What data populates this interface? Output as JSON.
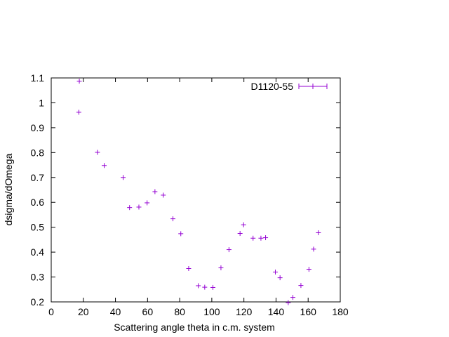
{
  "chart_data": {
    "type": "scatter",
    "title": "",
    "xlabel": "Scattering angle theta in c.m. system",
    "ylabel": "dsigma/dOmega",
    "xlim": [
      0,
      180
    ],
    "ylim": [
      0.2,
      1.1
    ],
    "xticks": [
      0,
      20,
      40,
      60,
      80,
      100,
      120,
      140,
      160,
      180
    ],
    "yticks": [
      0.2,
      0.3,
      0.4,
      0.5,
      0.6,
      0.7,
      0.8,
      0.9,
      1,
      1.1
    ],
    "grid": false,
    "legend_position": "top-right",
    "series": [
      {
        "name": "D1120-55",
        "color": "#9400d3",
        "marker": "plus",
        "points": [
          {
            "x": 17.5,
            "y": 1.087
          },
          {
            "x": 17.2,
            "y": 0.962
          },
          {
            "x": 28.8,
            "y": 0.801
          },
          {
            "x": 33.0,
            "y": 0.748
          },
          {
            "x": 44.8,
            "y": 0.7
          },
          {
            "x": 48.8,
            "y": 0.579
          },
          {
            "x": 54.6,
            "y": 0.581
          },
          {
            "x": 59.7,
            "y": 0.598
          },
          {
            "x": 64.6,
            "y": 0.643
          },
          {
            "x": 69.8,
            "y": 0.629
          },
          {
            "x": 75.8,
            "y": 0.534
          },
          {
            "x": 80.7,
            "y": 0.474
          },
          {
            "x": 85.6,
            "y": 0.334
          },
          {
            "x": 91.6,
            "y": 0.265
          },
          {
            "x": 95.6,
            "y": 0.259
          },
          {
            "x": 100.7,
            "y": 0.258
          },
          {
            "x": 105.7,
            "y": 0.337
          },
          {
            "x": 110.7,
            "y": 0.41
          },
          {
            "x": 117.6,
            "y": 0.475
          },
          {
            "x": 119.8,
            "y": 0.51
          },
          {
            "x": 125.7,
            "y": 0.456
          },
          {
            "x": 130.6,
            "y": 0.456
          },
          {
            "x": 133.5,
            "y": 0.458
          },
          {
            "x": 139.6,
            "y": 0.32
          },
          {
            "x": 142.5,
            "y": 0.297
          },
          {
            "x": 147.6,
            "y": 0.197
          },
          {
            "x": 150.5,
            "y": 0.218
          },
          {
            "x": 155.5,
            "y": 0.266
          },
          {
            "x": 160.5,
            "y": 0.331
          },
          {
            "x": 163.4,
            "y": 0.412
          },
          {
            "x": 166.4,
            "y": 0.478
          }
        ]
      }
    ]
  }
}
